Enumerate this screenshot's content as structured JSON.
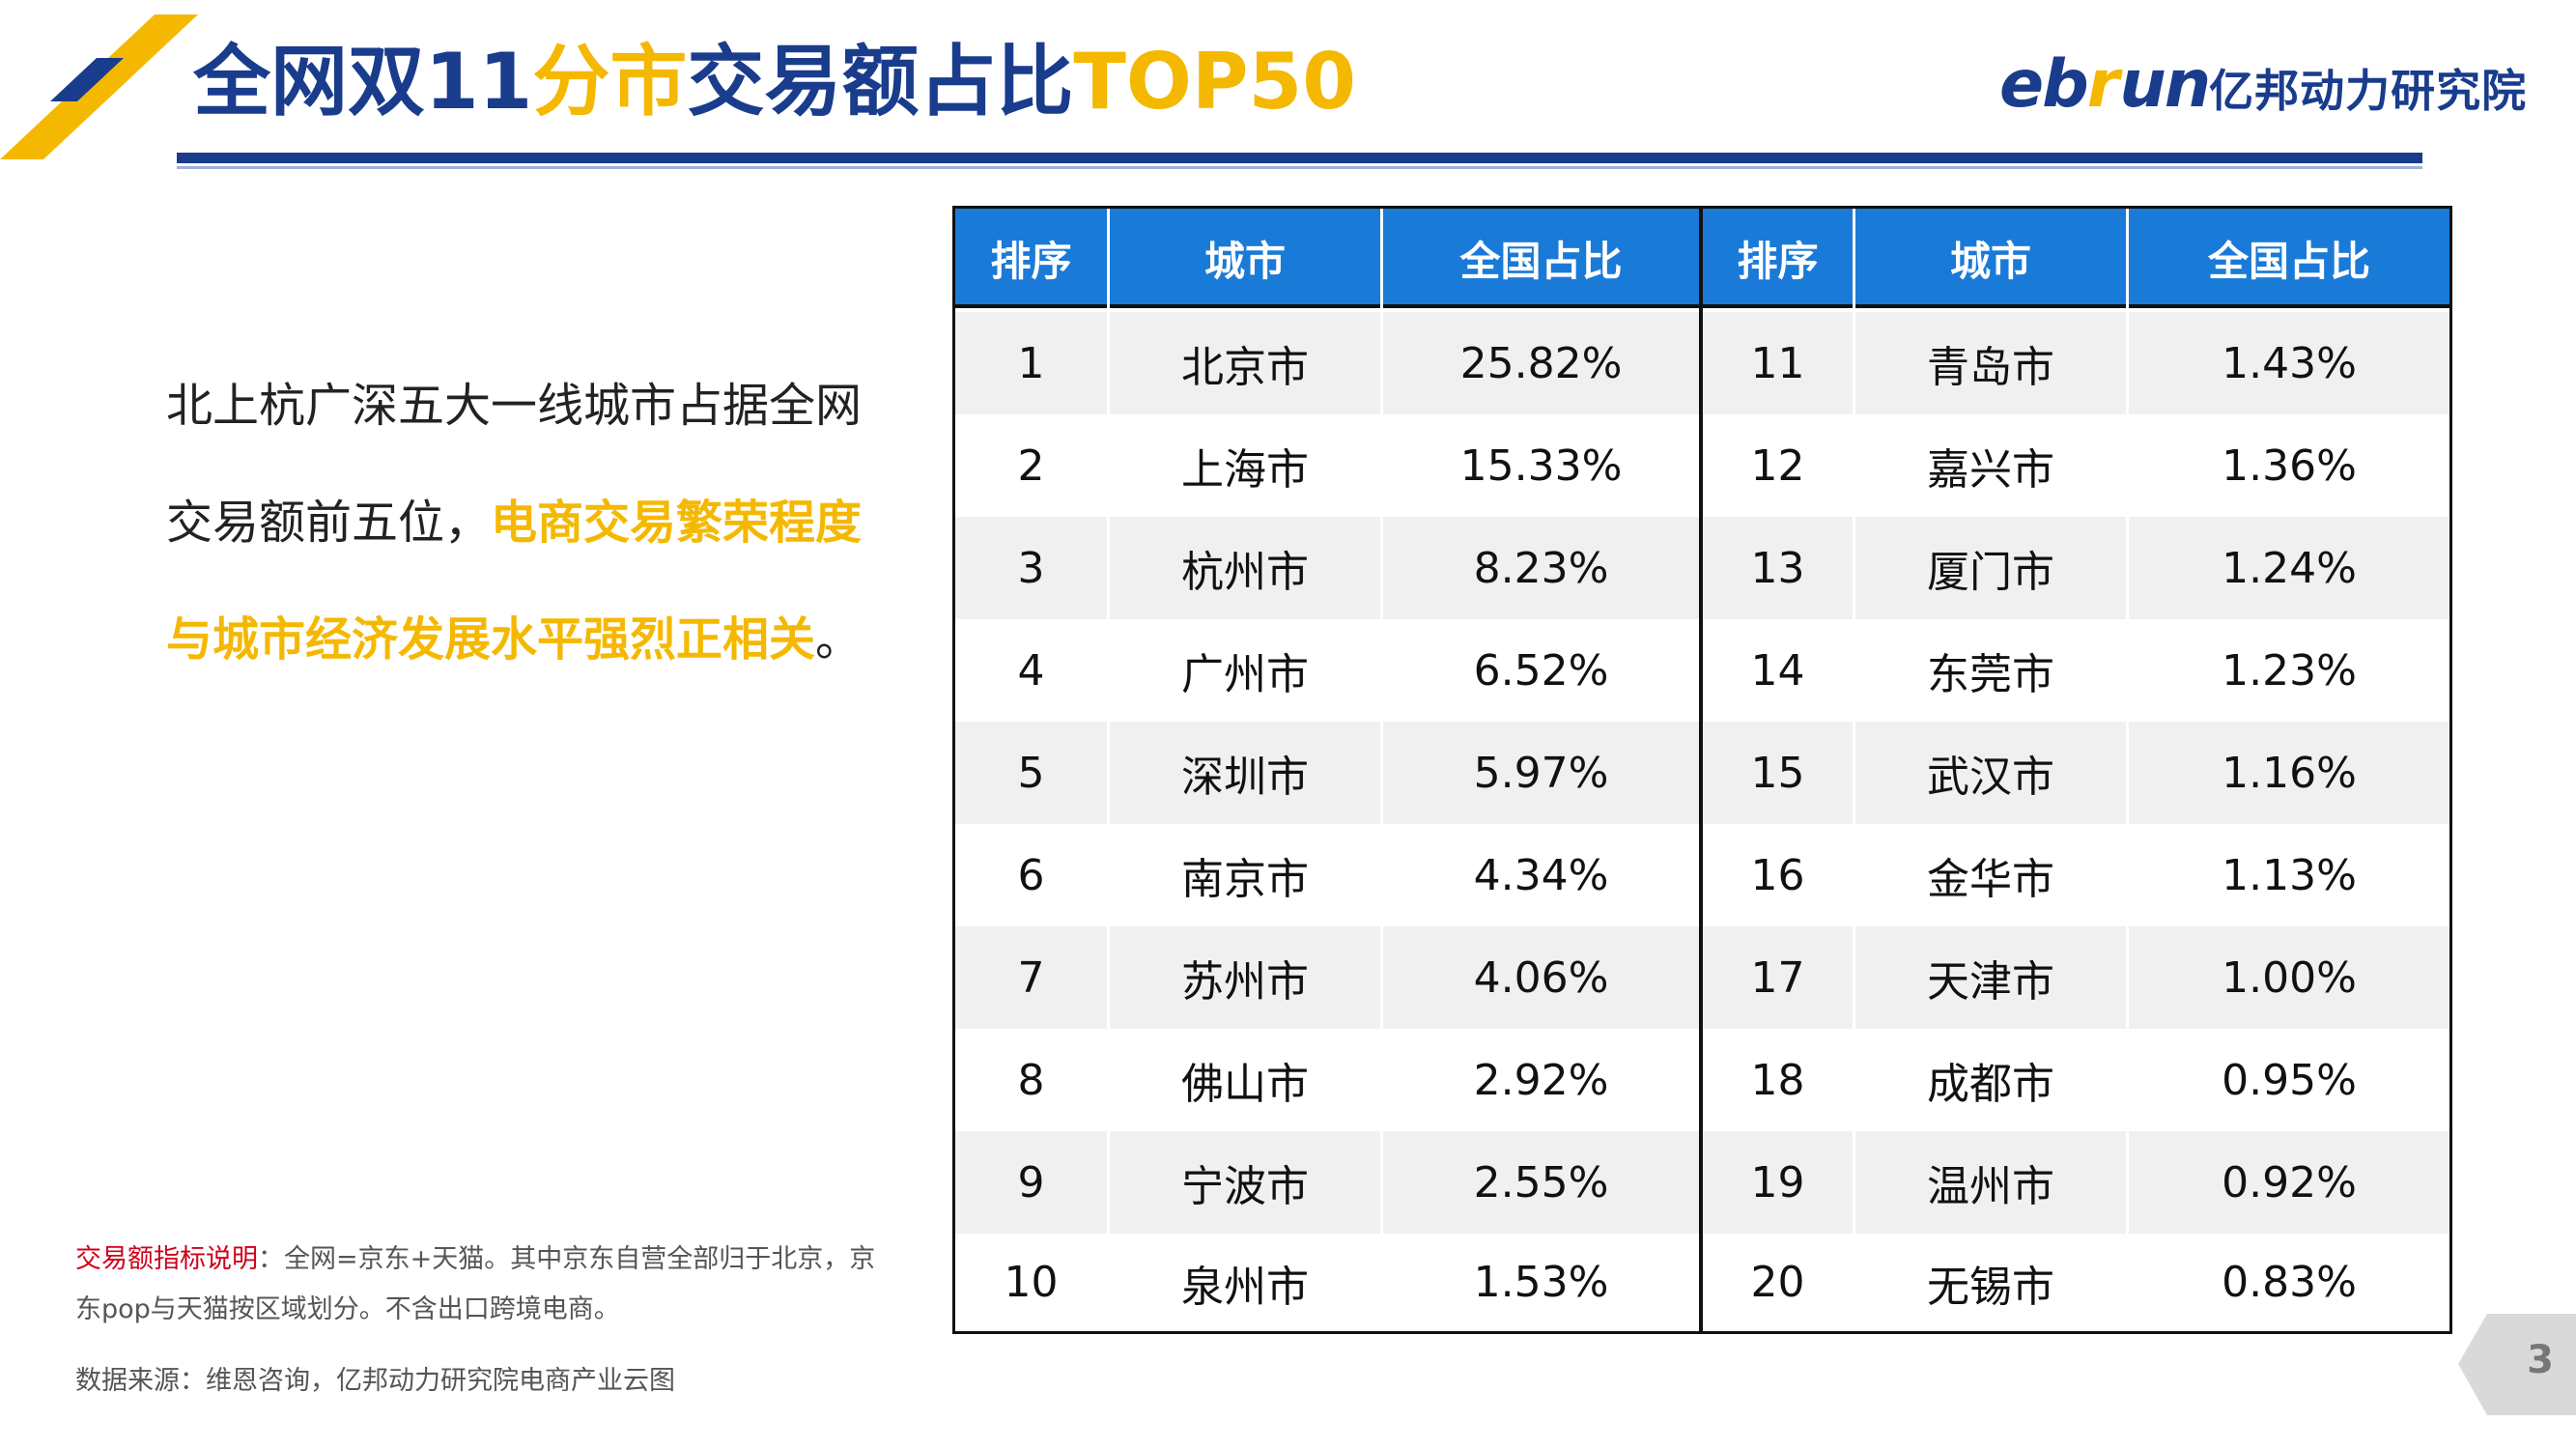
{
  "header": {
    "title_part1": "全网双11",
    "title_part2": "分市",
    "title_part3": "交易额占比",
    "title_part4": "TOP50",
    "logo_eb": "eb",
    "logo_r": "r",
    "logo_un": "un",
    "logo_cn": "亿邦动力研究院"
  },
  "colors": {
    "brand_blue": "#1a3c8c",
    "accent_yellow": "#f5b800",
    "table_header": "#1a7ad8",
    "note_red": "#d0021b"
  },
  "paragraph": {
    "normal": "北上杭广深五大一线城市占据全网交易额前五位，",
    "highlight": "电商交易繁荣程度与城市经济发展水平强烈正相关",
    "end": "。"
  },
  "note": {
    "label": "交易额指标说明",
    "text": "：全网=京东+天猫。其中京东自营全部归于北京，京东pop与天猫按区域划分。不含出口跨境电商。"
  },
  "source": "数据来源：维恩咨询，亿邦动力研究院电商产业云图",
  "table": {
    "headers": [
      "排序",
      "城市",
      "全国占比",
      "排序",
      "城市",
      "全国占比"
    ],
    "rows": [
      [
        "1",
        "北京市",
        "25.82%",
        "11",
        "青岛市",
        "1.43%"
      ],
      [
        "2",
        "上海市",
        "15.33%",
        "12",
        "嘉兴市",
        "1.36%"
      ],
      [
        "3",
        "杭州市",
        "8.23%",
        "13",
        "厦门市",
        "1.24%"
      ],
      [
        "4",
        "广州市",
        "6.52%",
        "14",
        "东莞市",
        "1.23%"
      ],
      [
        "5",
        "深圳市",
        "5.97%",
        "15",
        "武汉市",
        "1.16%"
      ],
      [
        "6",
        "南京市",
        "4.34%",
        "16",
        "金华市",
        "1.13%"
      ],
      [
        "7",
        "苏州市",
        "4.06%",
        "17",
        "天津市",
        "1.00%"
      ],
      [
        "8",
        "佛山市",
        "2.92%",
        "18",
        "成都市",
        "0.95%"
      ],
      [
        "9",
        "宁波市",
        "2.55%",
        "19",
        "温州市",
        "0.92%"
      ],
      [
        "10",
        "泉州市",
        "1.53%",
        "20",
        "无锡市",
        "0.83%"
      ]
    ]
  },
  "page_number": "3"
}
